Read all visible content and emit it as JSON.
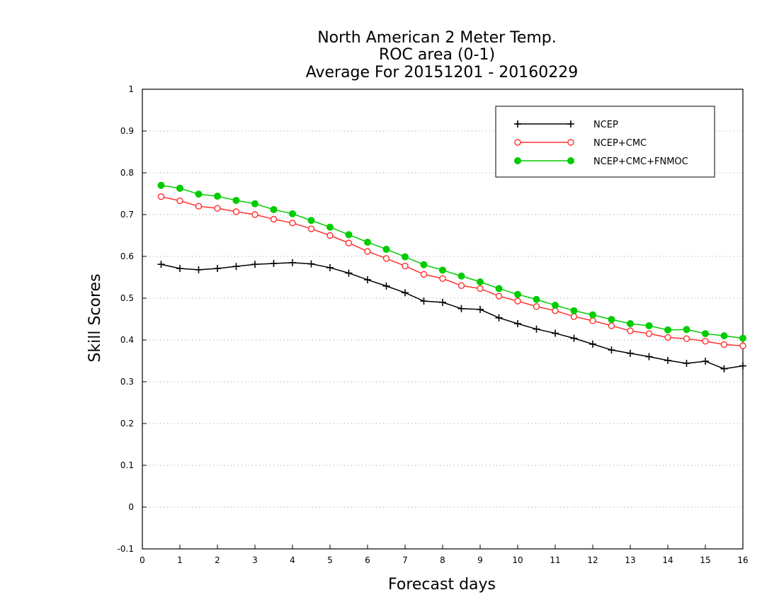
{
  "chart_data": {
    "type": "line",
    "title_lines": [
      "North American 2 Meter Temp.",
      "ROC area (0-1)",
      "Average For 20151201 - 20160229"
    ],
    "xlabel": "Forecast days",
    "ylabel": "Skill Scores",
    "xlim": [
      0,
      16
    ],
    "ylim": [
      -0.1,
      1
    ],
    "xticks": [
      0,
      1,
      2,
      3,
      4,
      5,
      6,
      7,
      8,
      9,
      10,
      11,
      12,
      13,
      14,
      15,
      16
    ],
    "xtick_labels": [
      "0",
      "1",
      "2",
      "3",
      "4",
      "5",
      "6",
      "7",
      "8",
      "9",
      "10",
      "11",
      "12",
      "13",
      "14",
      "15",
      "16"
    ],
    "yticks": [
      -0.1,
      0,
      0.1,
      0.2,
      0.3,
      0.4,
      0.5,
      0.6,
      0.7,
      0.8,
      0.9,
      1
    ],
    "ytick_labels": [
      "-0.1",
      "0",
      "0.1",
      "0.2",
      "0.3",
      "0.4",
      "0.5",
      "0.6",
      "0.7",
      "0.8",
      "0.9",
      "1"
    ],
    "grid": "horizontal-dotted",
    "legend_position": "top-right",
    "x": [
      0.5,
      1,
      1.5,
      2,
      2.5,
      3,
      3.5,
      4,
      4.5,
      5,
      5.5,
      6,
      6.5,
      7,
      7.5,
      8,
      8.5,
      9,
      9.5,
      10,
      10.5,
      11,
      11.5,
      12,
      12.5,
      13,
      13.5,
      14,
      14.5,
      15,
      15.5,
      16
    ],
    "series": [
      {
        "name": "NCEP",
        "color": "#000000",
        "marker": "plus",
        "values": [
          0.581,
          0.571,
          0.568,
          0.571,
          0.576,
          0.581,
          0.583,
          0.585,
          0.582,
          0.573,
          0.56,
          0.544,
          0.529,
          0.513,
          0.493,
          0.49,
          0.475,
          0.473,
          0.453,
          0.439,
          0.426,
          0.416,
          0.404,
          0.39,
          0.376,
          0.368,
          0.36,
          0.351,
          0.344,
          0.349,
          0.331,
          0.338
        ]
      },
      {
        "name": "NCEP+CMC",
        "color": "#ff3030",
        "marker": "open-circle",
        "values": [
          0.743,
          0.733,
          0.72,
          0.715,
          0.707,
          0.7,
          0.689,
          0.68,
          0.666,
          0.65,
          0.632,
          0.612,
          0.595,
          0.577,
          0.557,
          0.547,
          0.53,
          0.523,
          0.505,
          0.493,
          0.48,
          0.47,
          0.456,
          0.446,
          0.434,
          0.422,
          0.415,
          0.406,
          0.403,
          0.397,
          0.389,
          0.386
        ]
      },
      {
        "name": "NCEP+CMC+FNMOC",
        "color": "#00cc00",
        "marker": "filled-circle",
        "values": [
          0.77,
          0.763,
          0.749,
          0.744,
          0.734,
          0.726,
          0.712,
          0.702,
          0.686,
          0.67,
          0.652,
          0.634,
          0.617,
          0.599,
          0.58,
          0.567,
          0.553,
          0.539,
          0.523,
          0.509,
          0.497,
          0.483,
          0.47,
          0.46,
          0.449,
          0.439,
          0.434,
          0.424,
          0.425,
          0.415,
          0.41,
          0.404
        ]
      }
    ]
  }
}
